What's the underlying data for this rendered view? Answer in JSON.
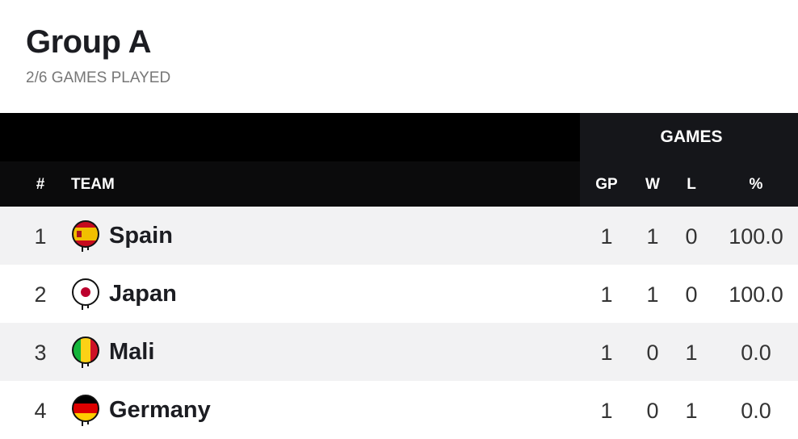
{
  "header": {
    "title": "Group A",
    "subtitle": "2/6 GAMES PLAYED"
  },
  "table": {
    "group_header": "GAMES",
    "columns": [
      "#",
      "TEAM",
      "GP",
      "W",
      "L",
      "%"
    ],
    "rows": [
      [
        1,
        "Spain",
        1,
        1,
        0,
        "100.0"
      ],
      [
        2,
        "Japan",
        1,
        1,
        0,
        "100.0"
      ],
      [
        3,
        "Mali",
        1,
        0,
        1,
        "0.0"
      ],
      [
        4,
        "Germany",
        1,
        0,
        1,
        "0.0"
      ]
    ]
  }
}
